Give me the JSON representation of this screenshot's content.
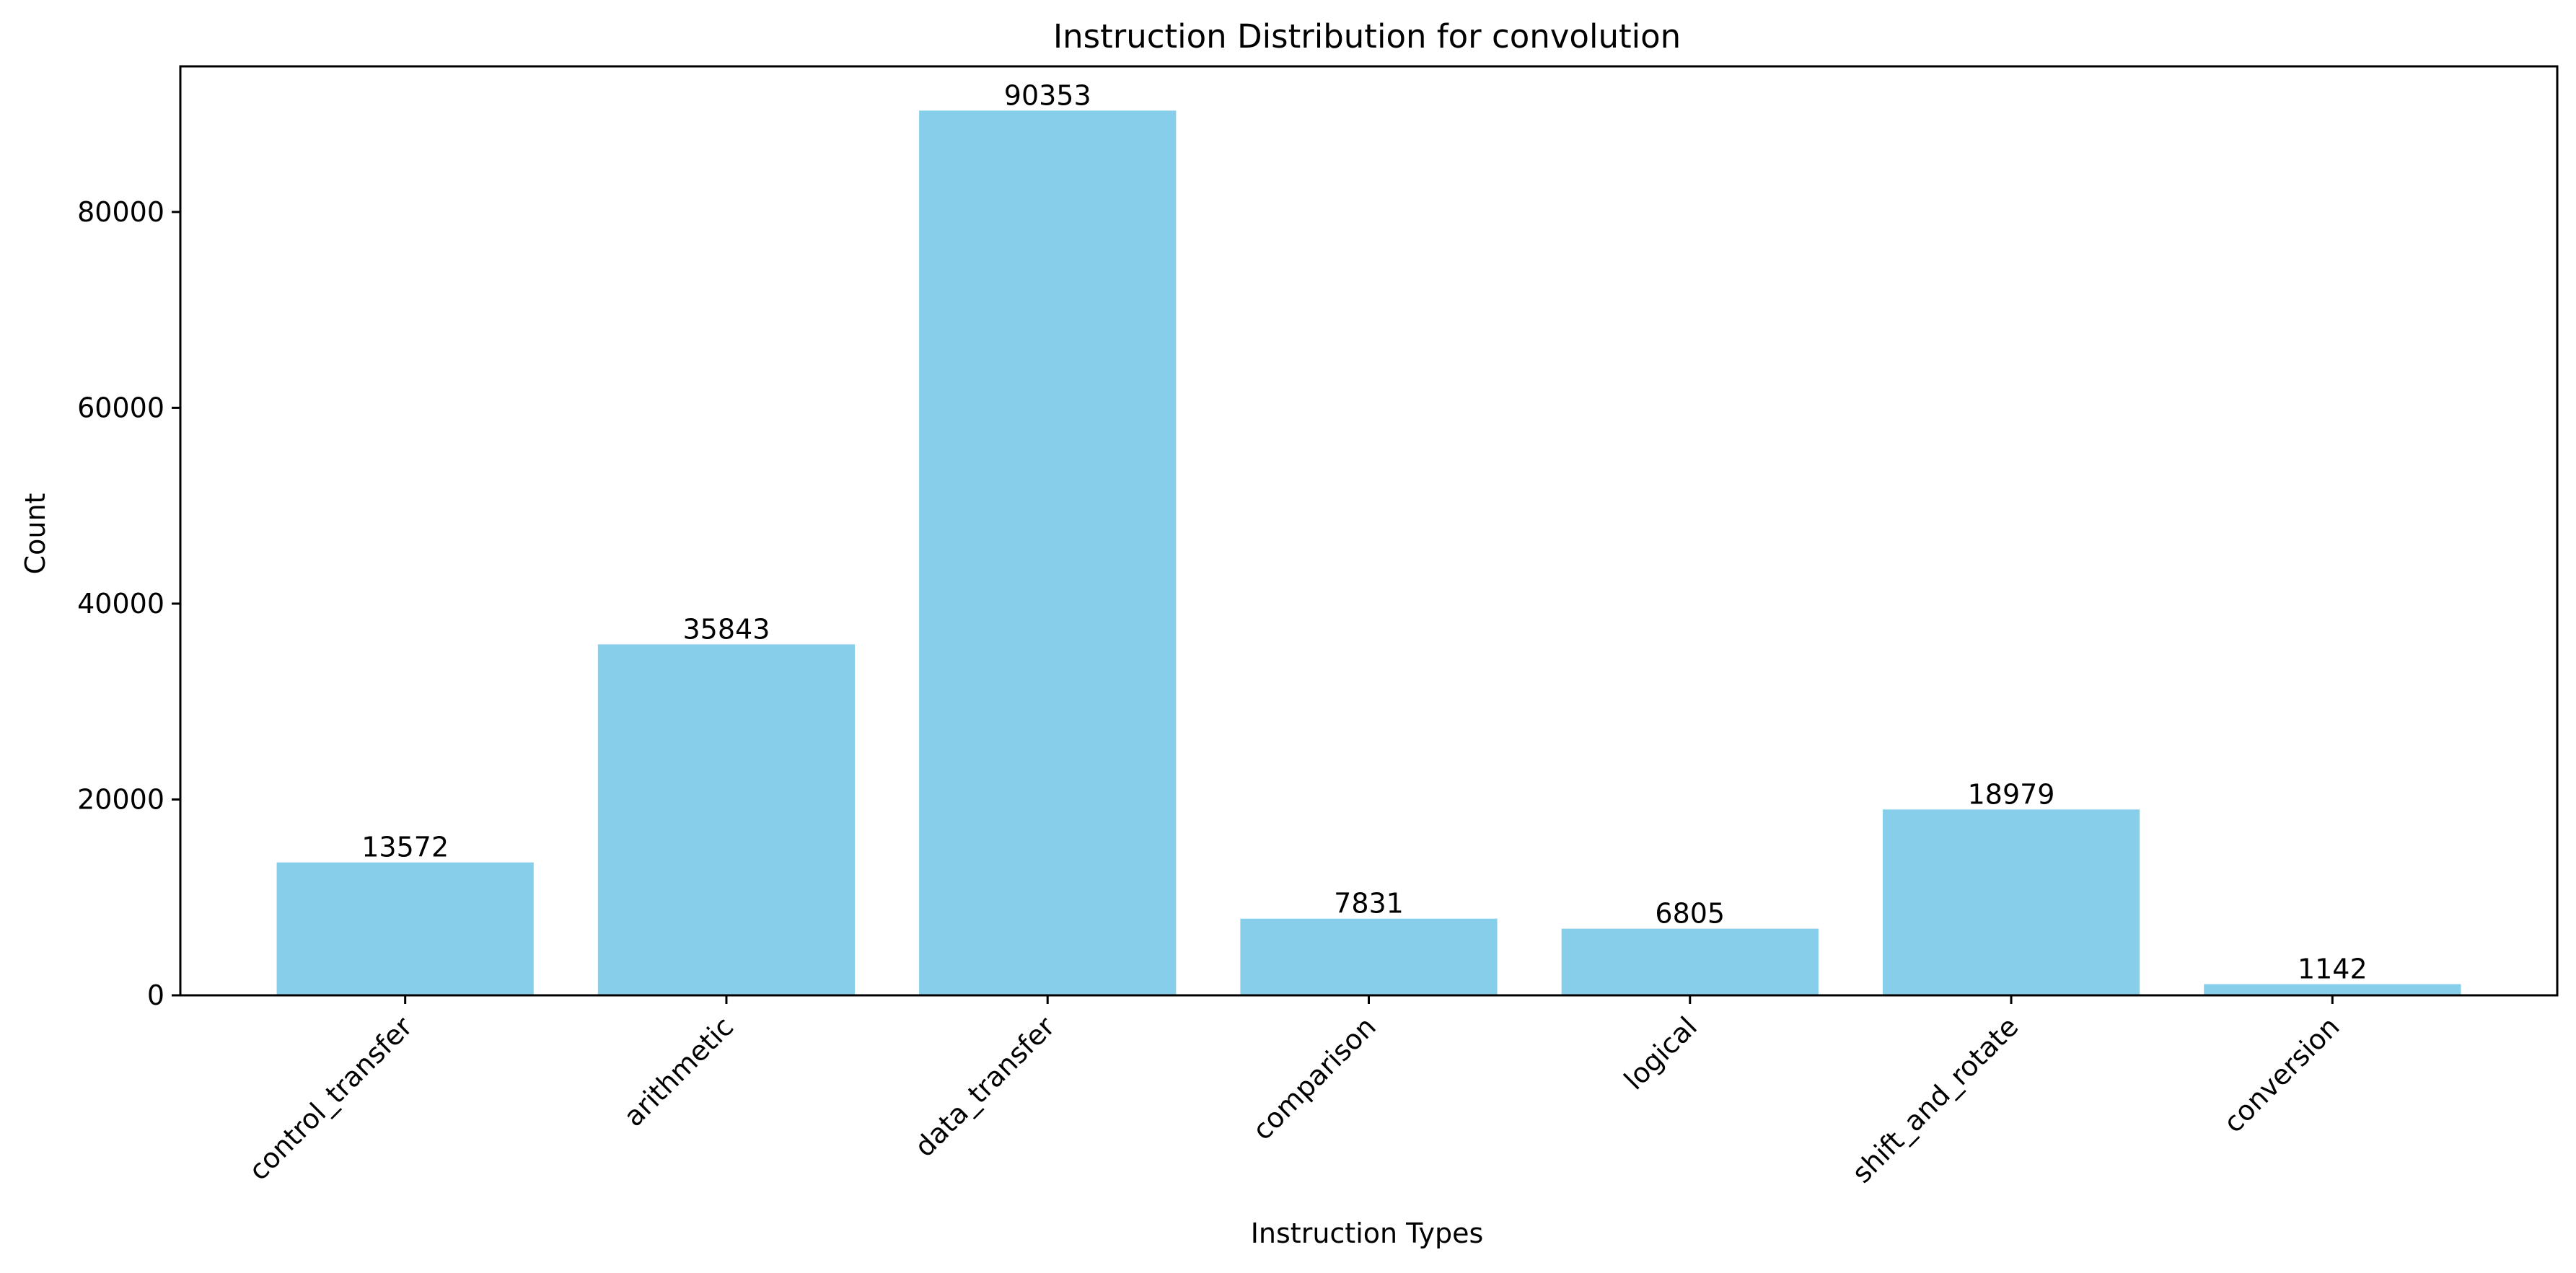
{
  "chart_data": {
    "type": "bar",
    "title": "Instruction Distribution for convolution",
    "xlabel": "Instruction Types",
    "ylabel": "Count",
    "categories": [
      "control_transfer",
      "arithmetic",
      "data_transfer",
      "comparison",
      "logical",
      "shift_and_rotate",
      "conversion"
    ],
    "values": [
      13572,
      35843,
      90353,
      7831,
      6805,
      18979,
      1142
    ],
    "data_labels": [
      "13572",
      "35843",
      "90353",
      "7831",
      "6805",
      "18979",
      "1142"
    ],
    "ylim": [
      0,
      94870
    ],
    "yticks": [
      0,
      20000,
      40000,
      60000,
      80000
    ],
    "ytick_labels": [
      "0",
      "20000",
      "40000",
      "60000",
      "80000"
    ],
    "bar_color": "#87ceeb",
    "grid": false,
    "legend": "none"
  }
}
